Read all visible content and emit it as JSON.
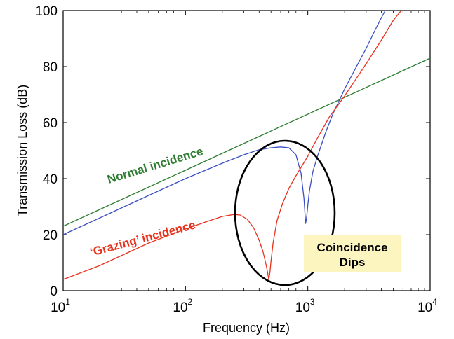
{
  "chart_data": {
    "type": "line",
    "title": "",
    "xlabel": "Frequency (Hz)",
    "ylabel": "Transmission Loss (dB)",
    "xscale": "log",
    "xlim": [
      10,
      10000
    ],
    "ylim": [
      0,
      100
    ],
    "grid": false,
    "x_ticks": [
      {
        "base": "10",
        "exp": "1"
      },
      {
        "base": "10",
        "exp": "2"
      },
      {
        "base": "10",
        "exp": "3"
      },
      {
        "base": "10",
        "exp": "4"
      }
    ],
    "y_ticks": [
      {
        "value": 0,
        "label": "0"
      },
      {
        "value": 20,
        "label": "20"
      },
      {
        "value": 40,
        "label": "40"
      },
      {
        "value": 60,
        "label": "60"
      },
      {
        "value": 80,
        "label": "80"
      },
      {
        "value": 100,
        "label": "100"
      }
    ],
    "series": [
      {
        "color": "#2e7d32",
        "x": [
          10,
          10000
        ],
        "y": [
          23,
          83
        ]
      },
      {
        "color": "#3a4fc4",
        "x": [
          10,
          20,
          50,
          100,
          200,
          300,
          400,
          500,
          600,
          700,
          800,
          880,
          930,
          960,
          980,
          1000,
          1030,
          1100,
          1200,
          1400,
          1600,
          2000,
          2500,
          3000,
          3500,
          4000,
          4300
        ],
        "y": [
          20,
          26,
          34,
          40,
          45.5,
          48.5,
          50.3,
          51,
          51.3,
          51,
          48.5,
          42,
          33,
          24,
          26.5,
          30.5,
          35.5,
          42.5,
          48,
          56.5,
          63,
          72,
          80,
          86.5,
          92.5,
          97.5,
          100
        ]
      },
      {
        "color": "#e8321e",
        "x": [
          10,
          20,
          50,
          100,
          150,
          200,
          250,
          280,
          320,
          360,
          400,
          430,
          460,
          480,
          490,
          500,
          520,
          560,
          620,
          700,
          800,
          1000,
          1200,
          1500,
          2000,
          3000,
          4000,
          5000,
          5800
        ],
        "y": [
          4,
          9,
          17,
          22,
          24.7,
          26.5,
          27.2,
          27,
          25.5,
          22.5,
          18,
          14,
          8.5,
          4,
          6.5,
          10.5,
          17,
          25,
          31,
          36.5,
          41,
          48,
          54.5,
          62,
          69.5,
          81,
          89.5,
          96.5,
          100
        ]
      }
    ],
    "annotations": [
      {
        "text": "Normal incidence",
        "color": "#2e7d32"
      },
      {
        "text": "‘Grazing’ incidence",
        "color": "#e8321e"
      }
    ],
    "callout": {
      "lines": [
        "Coincidence",
        "Dips"
      ],
      "background": "#fdf5c0",
      "ellipse_color": "#000000"
    }
  }
}
